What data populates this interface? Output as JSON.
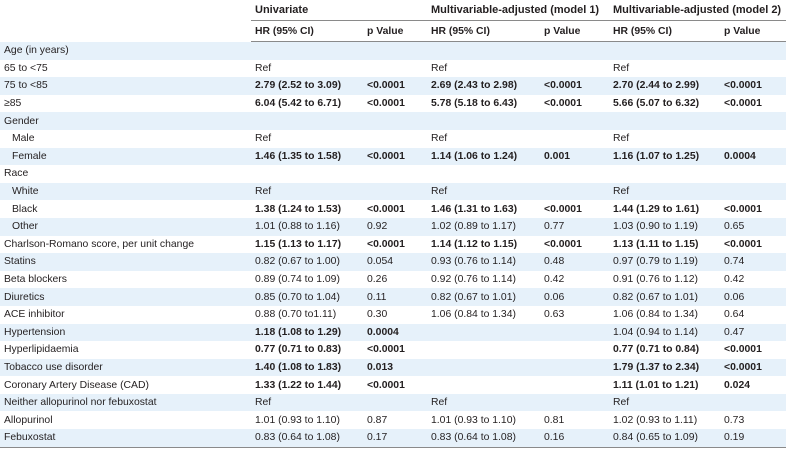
{
  "header": {
    "groups": [
      "Univariate",
      "Multivariable-adjusted (model 1)",
      "Multivariable-adjusted (model 2)"
    ],
    "hr_label": "HR (95% CI)",
    "p_label": "p Value"
  },
  "rows": [
    {
      "label": "Age (in years)",
      "indent": false,
      "cells": [
        "",
        "",
        "",
        "",
        "",
        ""
      ],
      "bold": [
        false,
        false,
        false,
        false,
        false,
        false
      ]
    },
    {
      "label": "65 to <75",
      "indent": false,
      "cells": [
        "Ref",
        "",
        "Ref",
        "",
        "Ref",
        ""
      ],
      "bold": [
        false,
        false,
        false,
        false,
        false,
        false
      ]
    },
    {
      "label": "75 to <85",
      "indent": false,
      "cells": [
        "2.79 (2.52 to 3.09)",
        "<0.0001",
        "2.69 (2.43 to 2.98)",
        "<0.0001",
        "2.70 (2.44 to 2.99)",
        "<0.0001"
      ],
      "bold": [
        true,
        true,
        true,
        true,
        true,
        true
      ]
    },
    {
      "label": "≥85",
      "indent": false,
      "cells": [
        "6.04 (5.42 to 6.71)",
        "<0.0001",
        "5.78 (5.18 to 6.43)",
        "<0.0001",
        "5.66 (5.07 to 6.32)",
        "<0.0001"
      ],
      "bold": [
        true,
        true,
        true,
        true,
        true,
        true
      ]
    },
    {
      "label": "Gender",
      "indent": false,
      "cells": [
        "",
        "",
        "",
        "",
        "",
        ""
      ],
      "bold": [
        false,
        false,
        false,
        false,
        false,
        false
      ]
    },
    {
      "label": "Male",
      "indent": true,
      "cells": [
        "Ref",
        "",
        "Ref",
        "",
        "Ref",
        ""
      ],
      "bold": [
        false,
        false,
        false,
        false,
        false,
        false
      ]
    },
    {
      "label": "Female",
      "indent": true,
      "cells": [
        "1.46 (1.35 to 1.58)",
        "<0.0001",
        "1.14 (1.06 to 1.24)",
        "0.001",
        "1.16 (1.07 to 1.25)",
        "0.0004"
      ],
      "bold": [
        true,
        true,
        true,
        true,
        true,
        true
      ]
    },
    {
      "label": "Race",
      "indent": false,
      "cells": [
        "",
        "",
        "",
        "",
        "",
        ""
      ],
      "bold": [
        false,
        false,
        false,
        false,
        false,
        false
      ]
    },
    {
      "label": "White",
      "indent": true,
      "cells": [
        "Ref",
        "",
        "Ref",
        "",
        "Ref",
        ""
      ],
      "bold": [
        false,
        false,
        false,
        false,
        false,
        false
      ]
    },
    {
      "label": "Black",
      "indent": true,
      "cells": [
        "1.38 (1.24 to 1.53)",
        "<0.0001",
        "1.46 (1.31 to 1.63)",
        "<0.0001",
        "1.44 (1.29 to 1.61)",
        "<0.0001"
      ],
      "bold": [
        true,
        true,
        true,
        true,
        true,
        true
      ]
    },
    {
      "label": "Other",
      "indent": true,
      "cells": [
        "1.01 (0.88 to 1.16)",
        "0.92",
        "1.02 (0.89 to 1.17)",
        "0.77",
        "1.03 (0.90 to 1.19)",
        "0.65"
      ],
      "bold": [
        false,
        false,
        false,
        false,
        false,
        false
      ]
    },
    {
      "label": "Charlson-Romano score, per unit change",
      "indent": false,
      "cells": [
        "1.15 (1.13 to 1.17)",
        "<0.0001",
        "1.14 (1.12 to 1.15)",
        "<0.0001",
        "1.13 (1.11 to 1.15)",
        "<0.0001"
      ],
      "bold": [
        true,
        true,
        true,
        true,
        true,
        true
      ]
    },
    {
      "label": "Statins",
      "indent": false,
      "cells": [
        "0.82 (0.67 to 1.00)",
        "0.054",
        "0.93 (0.76 to 1.14)",
        "0.48",
        "0.97 (0.79 to 1.19)",
        "0.74"
      ],
      "bold": [
        false,
        false,
        false,
        false,
        false,
        false
      ]
    },
    {
      "label": "Beta blockers",
      "indent": false,
      "cells": [
        "0.89 (0.74 to 1.09)",
        "0.26",
        "0.92 (0.76 to 1.14)",
        "0.42",
        "0.91 (0.76 to 1.12)",
        "0.42"
      ],
      "bold": [
        false,
        false,
        false,
        false,
        false,
        false
      ]
    },
    {
      "label": "Diuretics",
      "indent": false,
      "cells": [
        "0.85 (0.70 to 1.04)",
        "0.11",
        "0.82 (0.67 to 1.01)",
        "0.06",
        "0.82 (0.67 to 1.01)",
        "0.06"
      ],
      "bold": [
        false,
        false,
        false,
        false,
        false,
        false
      ]
    },
    {
      "label": "ACE inhibitor",
      "indent": false,
      "cells": [
        "0.88 (0.70 to1.11)",
        "0.30",
        "1.06 (0.84 to 1.34)",
        "0.63",
        "1.06 (0.84 to 1.34)",
        "0.64"
      ],
      "bold": [
        false,
        false,
        false,
        false,
        false,
        false
      ]
    },
    {
      "label": "Hypertension",
      "indent": false,
      "cells": [
        "1.18 (1.08 to 1.29)",
        "0.0004",
        "",
        "",
        "1.04 (0.94 to 1.14)",
        "0.47"
      ],
      "bold": [
        true,
        true,
        false,
        false,
        false,
        false
      ]
    },
    {
      "label": "Hyperlipidaemia",
      "indent": false,
      "cells": [
        "0.77 (0.71 to 0.83)",
        "<0.0001",
        "",
        "",
        "0.77 (0.71 to 0.84)",
        "<0.0001"
      ],
      "bold": [
        true,
        true,
        false,
        false,
        true,
        true
      ]
    },
    {
      "label": "Tobacco use disorder",
      "indent": false,
      "cells": [
        "1.40 (1.08 to 1.83)",
        "0.013",
        "",
        "",
        "1.79 (1.37 to 2.34)",
        "<0.0001"
      ],
      "bold": [
        true,
        true,
        false,
        false,
        true,
        true
      ]
    },
    {
      "label": "Coronary Artery Disease (CAD)",
      "indent": false,
      "cells": [
        "1.33 (1.22 to 1.44)",
        "<0.0001",
        "",
        "",
        "1.11 (1.01 to 1.21)",
        "0.024"
      ],
      "bold": [
        true,
        true,
        false,
        false,
        true,
        true
      ]
    },
    {
      "label": "Neither allopurinol nor febuxostat",
      "indent": false,
      "cells": [
        "Ref",
        "",
        "Ref",
        "",
        "Ref",
        ""
      ],
      "bold": [
        false,
        false,
        false,
        false,
        false,
        false
      ]
    },
    {
      "label": "Allopurinol",
      "indent": false,
      "cells": [
        "1.01 (0.93 to 1.10)",
        "0.87",
        "1.01 (0.93 to 1.10)",
        "0.81",
        "1.02 (0.93 to 1.11)",
        "0.73"
      ],
      "bold": [
        false,
        false,
        false,
        false,
        false,
        false
      ]
    },
    {
      "label": "Febuxostat",
      "indent": false,
      "cells": [
        "0.83 (0.64 to 1.08)",
        "0.17",
        "0.83 (0.64 to 1.08)",
        "0.16",
        "0.84 (0.65 to 1.09)",
        "0.19"
      ],
      "bold": [
        false,
        false,
        false,
        false,
        false,
        false
      ]
    }
  ]
}
